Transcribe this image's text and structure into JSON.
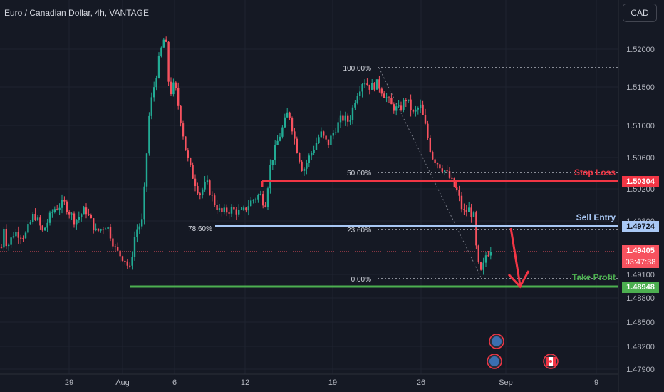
{
  "header": {
    "title": "Euro / Canadian Dollar, 4h, VANTAGE",
    "currency_button": "CAD"
  },
  "colors": {
    "background": "#151924",
    "up": "#22ab94",
    "down": "#f7525f",
    "stop": "#f23645",
    "entry": "#a9c8f5",
    "take_profit": "#4caf50"
  },
  "y_axis": {
    "ticks": [
      "1.52000",
      "1.51500",
      "1.51000",
      "1.50600",
      "1.50200",
      "1.49800",
      "1.49100",
      "1.48800",
      "1.48500",
      "1.48200",
      "1.47900"
    ]
  },
  "x_axis": {
    "ticks": [
      "29",
      "Aug",
      "6",
      "12",
      "19",
      "26",
      "Sep",
      "9"
    ]
  },
  "fib_levels": [
    {
      "label": "100.00%",
      "value": 1.5177
    },
    {
      "label": "50.00%",
      "value": 1.5041
    },
    {
      "label": "78.60%",
      "value": 1.4972
    },
    {
      "label": "23.60%",
      "value": 1.497
    },
    {
      "label": "0.00%",
      "value": 1.4905
    }
  ],
  "levels": {
    "stop_loss": {
      "label": "Stop Loss",
      "price": "1.50304"
    },
    "sell_entry": {
      "label": "Sell Entry",
      "price": "1.49724"
    },
    "take_profit": {
      "label": "Take Profit",
      "price": "1.48948"
    },
    "current": {
      "price": "1.49405",
      "countdown": "03:47:38"
    }
  },
  "events": {
    "icons": [
      "eu-flag-icon",
      "eu-flag-icon",
      "ca-flag-icon"
    ]
  }
}
